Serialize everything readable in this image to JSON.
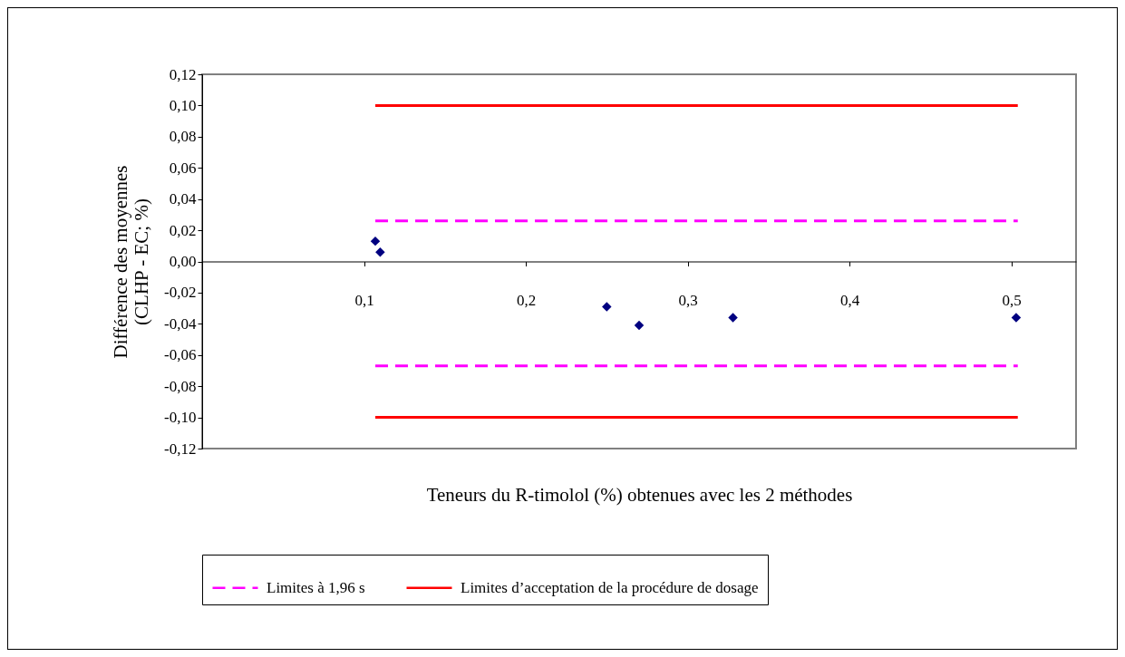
{
  "chart_data": {
    "type": "scatter",
    "xlabel": "Teneurs du R-timolol (%) obtenues avec les 2 méthodes",
    "ylabel": "Différence des moyennes\n(CLHP - EC; %)",
    "xlim": [
      0,
      0.54
    ],
    "xticks": [
      {
        "value": 0.1,
        "label": "0,1"
      },
      {
        "value": 0.2,
        "label": "0,2"
      },
      {
        "value": 0.3,
        "label": "0,3"
      },
      {
        "value": 0.4,
        "label": "0,4"
      },
      {
        "value": 0.5,
        "label": "0,5"
      }
    ],
    "ylim": [
      -0.12,
      0.12
    ],
    "yticks": [
      {
        "value": -0.12,
        "label": "-0,12"
      },
      {
        "value": -0.1,
        "label": "-0,10"
      },
      {
        "value": -0.08,
        "label": "-0,08"
      },
      {
        "value": -0.06,
        "label": "-0,06"
      },
      {
        "value": -0.04,
        "label": "-0,04"
      },
      {
        "value": -0.02,
        "label": "-0,02"
      },
      {
        "value": 0,
        "label": "0,00"
      },
      {
        "value": 0.02,
        "label": "0,02"
      },
      {
        "value": 0.04,
        "label": "0,04"
      },
      {
        "value": 0.06,
        "label": "0,06"
      },
      {
        "value": 0.08,
        "label": "0,08"
      },
      {
        "value": 0.1,
        "label": "0,10"
      },
      {
        "value": 0.12,
        "label": "0,12"
      }
    ],
    "grid": false,
    "legend": "bottom",
    "series": [
      {
        "color": "#000080",
        "marker": "diamond",
        "x": [
          0.107,
          0.11,
          0.25,
          0.27,
          0.328,
          0.503
        ],
        "values": [
          0.013,
          0.006,
          -0.029,
          -0.041,
          -0.036,
          -0.036
        ]
      },
      {
        "type": "line",
        "name": "Limites à 1,96 s",
        "color": "#ff00ff",
        "line_style": "dashed",
        "marker": "none",
        "x": [
          0.107,
          0.504
        ],
        "values": [
          0.026,
          0.026
        ]
      },
      {
        "type": "line",
        "color": "#ff00ff",
        "line_style": "dashed",
        "marker": "none",
        "x": [
          0.107,
          0.504
        ],
        "values": [
          -0.067,
          -0.067
        ]
      },
      {
        "type": "line",
        "name": "Limites d’acceptation de la procédure de dosage",
        "color": "#ff0000",
        "line_style": "solid",
        "marker": "none",
        "x": [
          0.107,
          0.504
        ],
        "values": [
          0.1,
          0.1
        ]
      },
      {
        "type": "line",
        "color": "#ff0000",
        "line_style": "solid",
        "marker": "none",
        "x": [
          0.107,
          0.504
        ],
        "values": [
          -0.1,
          -0.1
        ]
      }
    ]
  }
}
